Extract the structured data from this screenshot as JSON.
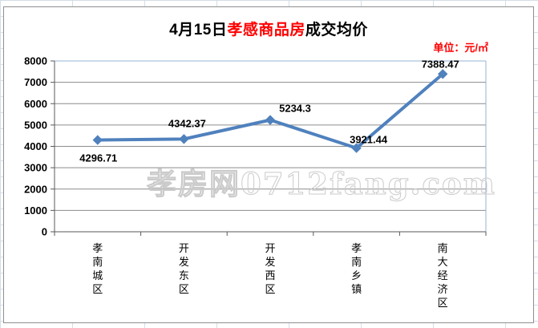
{
  "title": {
    "prefix": "4月15日",
    "highlight": "孝感商品房",
    "suffix": "成交均价"
  },
  "unit_label": "单位：元/㎡",
  "watermark": "孝房网0712fang.com",
  "chart_data": {
    "type": "line",
    "title": "4月15日孝感商品房成交均价",
    "unit": "元/㎡",
    "categories": [
      "孝南城区",
      "开发东区",
      "开发西区",
      "孝南乡镇",
      "南大经济区"
    ],
    "values": [
      4296.71,
      4342.37,
      5234.3,
      3921.44,
      7388.47
    ],
    "data_labels": [
      "4296.71",
      "4342.37",
      "5234.3",
      "3921.44",
      "7388.47"
    ],
    "xlabel": "",
    "ylabel": "",
    "ylim": [
      0,
      8000
    ],
    "ytick_interval": 1000,
    "grid": true,
    "legend": "none",
    "marker": "diamond"
  },
  "colors": {
    "series": "#4F81BD",
    "gridline": "#8c8c8c",
    "axis": "#595959",
    "plot_border": "#95B3D7",
    "title_highlight": "#ff0000",
    "unit_text": "#ff0000",
    "chart_border": "#8f8f8f",
    "sheet_grid": "#d4dde7",
    "watermark": "#cbcbcb"
  }
}
